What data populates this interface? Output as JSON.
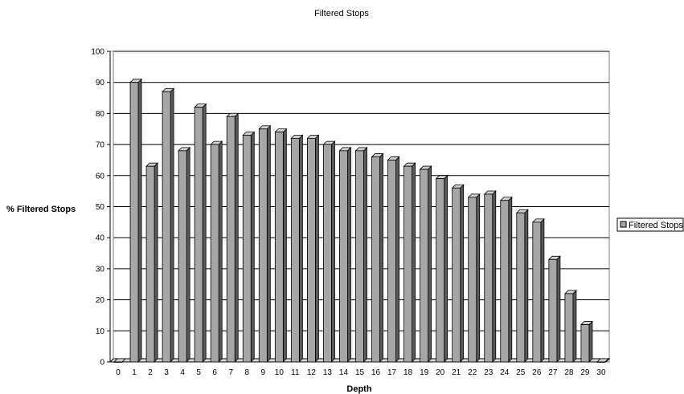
{
  "chart_data": {
    "type": "bar",
    "title": "Filtered Stops",
    "xlabel": "Depth",
    "ylabel": "% Filtered Stops",
    "ylim": [
      0,
      100
    ],
    "yticks": [
      "0",
      "10",
      "20",
      "30",
      "40",
      "50",
      "60",
      "70",
      "80",
      "90",
      "100"
    ],
    "grid": true,
    "legend_position": "right",
    "categories": [
      "0",
      "1",
      "2",
      "3",
      "4",
      "5",
      "6",
      "7",
      "8",
      "9",
      "10",
      "11",
      "12",
      "13",
      "14",
      "15",
      "16",
      "17",
      "18",
      "19",
      "20",
      "21",
      "22",
      "23",
      "24",
      "25",
      "26",
      "27",
      "28",
      "29",
      "30"
    ],
    "series": [
      {
        "name": "Filtered Stops",
        "color": "#a6a6a6",
        "values": [
          0,
          90,
          63,
          87,
          68,
          82,
          70,
          79,
          73,
          75,
          74,
          72,
          72,
          70,
          68,
          68,
          66,
          65,
          63,
          62,
          59,
          56,
          53,
          54,
          52,
          48,
          45,
          33,
          22,
          12,
          0
        ]
      }
    ]
  }
}
